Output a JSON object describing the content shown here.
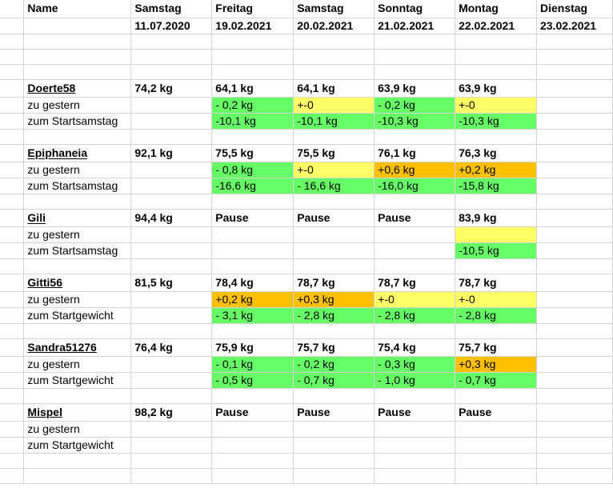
{
  "header": {
    "name_label": "Name",
    "days": [
      {
        "day": "Samstag",
        "date": "11.07.2020"
      },
      {
        "day": "Freitag",
        "date": "19.02.2021"
      },
      {
        "day": "Samstag",
        "date": "20.02.2021"
      },
      {
        "day": "Sonntag",
        "date": "21.02.2021"
      },
      {
        "day": "Montag",
        "date": "22.02.2021"
      },
      {
        "day": "Dienstag",
        "date": "23.02.2021"
      }
    ]
  },
  "colors": {
    "green": "#66ff66",
    "yellow": "#ffff66",
    "orange": "#ffc000",
    "gridline": "#d4d4d4"
  },
  "persons": [
    {
      "name": "Doerte58",
      "name_spellcheck": false,
      "start": "74,2 kg",
      "weights": [
        "64,1 kg",
        "64,1 kg",
        "63,9 kg",
        "63,9 kg",
        ""
      ],
      "row1_label": "zu gestern",
      "row1": [
        {
          "text": "- 0,2 kg",
          "color": "green"
        },
        {
          "text": "+-0",
          "color": "yellow"
        },
        {
          "text": "- 0,2 kg",
          "color": "green"
        },
        {
          "text": "+-0",
          "color": "yellow"
        },
        {
          "text": "",
          "color": ""
        }
      ],
      "row2_label": "zum Startsamstag",
      "row2": [
        {
          "text": "-10,1 kg",
          "color": "green"
        },
        {
          "text": "-10,1 kg",
          "color": "green"
        },
        {
          "text": "-10,3 kg",
          "color": "green"
        },
        {
          "text": "-10,3 kg",
          "color": "green"
        },
        {
          "text": "",
          "color": ""
        }
      ]
    },
    {
      "name": "Epiphaneia",
      "name_spellcheck": true,
      "start": "92,1 kg",
      "weights": [
        "75,5 kg",
        "75,5 kg",
        "76,1 kg",
        "76,3 kg",
        ""
      ],
      "row1_label": "zu gestern",
      "row1": [
        {
          "text": "- 0,8 kg",
          "color": "green"
        },
        {
          "text": "+-0",
          "color": "yellow"
        },
        {
          "text": "+0,6 kg",
          "color": "orange"
        },
        {
          "text": "+0,2 kg",
          "color": "orange"
        },
        {
          "text": "",
          "color": ""
        }
      ],
      "row2_label": "zum Startsamstag",
      "row2": [
        {
          "text": "-16,6 kg",
          "color": "green"
        },
        {
          "text": "- 16,6 kg",
          "color": "green"
        },
        {
          "text": "-16,0 kg",
          "color": "green"
        },
        {
          "text": "-15,8 kg",
          "color": "green"
        },
        {
          "text": "",
          "color": ""
        }
      ]
    },
    {
      "name": "Gili",
      "name_spellcheck": true,
      "start": "94,4 kg",
      "weights": [
        "Pause",
        "Pause",
        "Pause",
        "83,9 kg",
        ""
      ],
      "row1_label": "zu gestern",
      "row1": [
        {
          "text": "",
          "color": ""
        },
        {
          "text": "",
          "color": ""
        },
        {
          "text": "",
          "color": ""
        },
        {
          "text": "",
          "color": "yellow"
        },
        {
          "text": "",
          "color": ""
        }
      ],
      "row2_label": "zum Startsamstag",
      "row2": [
        {
          "text": "",
          "color": ""
        },
        {
          "text": "",
          "color": ""
        },
        {
          "text": "",
          "color": ""
        },
        {
          "text": "-10,5 kg",
          "color": "green"
        },
        {
          "text": "",
          "color": ""
        }
      ]
    },
    {
      "name": "Gitti56",
      "name_spellcheck": false,
      "start": "81,5 kg",
      "weights": [
        "78,4 kg",
        "78,7 kg",
        "78,7 kg",
        "78,7 kg",
        ""
      ],
      "row1_label": "zu gestern",
      "row1": [
        {
          "text": "+0,2 kg",
          "color": "orange"
        },
        {
          "text": "+0,3 kg",
          "color": "orange"
        },
        {
          "text": "+-0",
          "color": "yellow"
        },
        {
          "text": "+-0",
          "color": "yellow"
        },
        {
          "text": "",
          "color": ""
        }
      ],
      "row2_label": "zum Startgewicht",
      "row2": [
        {
          "text": "- 3,1 kg",
          "color": "green"
        },
        {
          "text": "- 2,8 kg",
          "color": "green"
        },
        {
          "text": "- 2,8 kg",
          "color": "green"
        },
        {
          "text": "- 2,8 kg",
          "color": "green"
        },
        {
          "text": "",
          "color": ""
        }
      ]
    },
    {
      "name": "Sandra51276",
      "name_spellcheck": false,
      "start": "76,4 kg",
      "weights": [
        "75,9 kg",
        "75,7 kg",
        "75,4 kg",
        "75,7 kg",
        ""
      ],
      "row1_label": "zu gestern",
      "row1": [
        {
          "text": "- 0,1 kg",
          "color": "green"
        },
        {
          "text": "- 0,2 kg",
          "color": "green"
        },
        {
          "text": "- 0,3 kg",
          "color": "green"
        },
        {
          "text": "+0,3 kg",
          "color": "orange"
        },
        {
          "text": "",
          "color": ""
        }
      ],
      "row2_label": "zum Startgewicht",
      "row2": [
        {
          "text": "- 0,5 kg",
          "color": "green"
        },
        {
          "text": "- 0,7 kg",
          "color": "green"
        },
        {
          "text": "- 1,0 kg",
          "color": "green"
        },
        {
          "text": "- 0,7 kg",
          "color": "green"
        },
        {
          "text": "",
          "color": ""
        }
      ]
    },
    {
      "name": "Mispel",
      "name_spellcheck": false,
      "start": "98,2 kg",
      "weights": [
        "Pause",
        "Pause",
        "Pause",
        "Pause",
        ""
      ],
      "row1_label": "zu gestern",
      "row1": [
        {
          "text": "",
          "color": ""
        },
        {
          "text": "",
          "color": ""
        },
        {
          "text": "",
          "color": ""
        },
        {
          "text": "",
          "color": ""
        },
        {
          "text": "",
          "color": ""
        }
      ],
      "row2_label": "zum Startgewicht",
      "row2": [
        {
          "text": "",
          "color": ""
        },
        {
          "text": "",
          "color": ""
        },
        {
          "text": "",
          "color": ""
        },
        {
          "text": "",
          "color": ""
        },
        {
          "text": "",
          "color": ""
        }
      ]
    }
  ]
}
